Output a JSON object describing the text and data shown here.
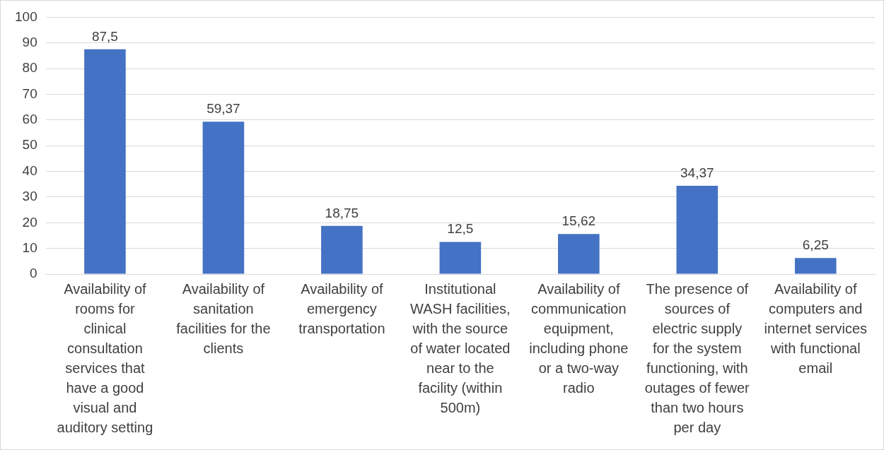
{
  "chart_data": {
    "type": "bar",
    "categories": [
      "Availability of rooms for clinical consultation services that have a good visual and auditory setting",
      "Availability of sanitation facilities for the clients",
      "Availability of emergency transportation",
      "Institutional WASH facilities, with the source of water located near to the facility (within 500m)",
      "Availability of communication equipment, including phone or a two-way radio",
      "The presence of sources of electric supply for the system functioning, with outages of fewer than two hours per day",
      "Availability of computers and internet services with functional email"
    ],
    "values": [
      87.5,
      59.37,
      18.75,
      12.5,
      15.62,
      34.37,
      6.25
    ],
    "value_labels": [
      "87,5",
      "59,37",
      "18,75",
      "12,5",
      "15,62",
      "34,37",
      "6,25"
    ],
    "color": "#4472c4",
    "ylim": [
      0,
      100
    ],
    "yticks": [
      0,
      10,
      20,
      30,
      40,
      50,
      60,
      70,
      80,
      90,
      100
    ],
    "grid": "y",
    "legend": false
  }
}
